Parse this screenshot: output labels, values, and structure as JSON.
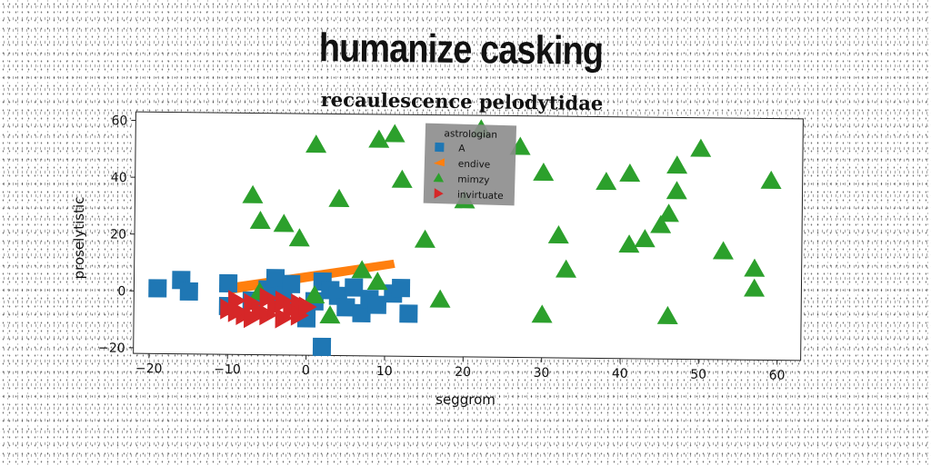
{
  "chart_data": {
    "type": "scatter",
    "title": "humanize casking",
    "subtitle": "recaulescence pelodytidae",
    "xlabel": "seggrom",
    "ylabel": "proselytistic",
    "xlim": [
      -22,
      63
    ],
    "ylim": [
      -22,
      63
    ],
    "xticks": [
      -20,
      -10,
      0,
      10,
      20,
      30,
      40,
      50,
      60
    ],
    "yticks": [
      -20,
      0,
      20,
      40,
      60
    ],
    "grid": false,
    "legend": {
      "title": "astrologian",
      "placement": "top-center"
    },
    "series": [
      {
        "name": "A",
        "marker": "square",
        "color": "#1f77b4",
        "points": [
          [
            -19,
            1
          ],
          [
            -16,
            4
          ],
          [
            -15,
            0
          ],
          [
            -10,
            3
          ],
          [
            -10,
            -5
          ],
          [
            -7,
            -3
          ],
          [
            -5,
            1
          ],
          [
            -4,
            5
          ],
          [
            -3,
            -1
          ],
          [
            -2,
            3
          ],
          [
            0,
            -9
          ],
          [
            1,
            -3
          ],
          [
            2,
            4
          ],
          [
            3,
            1
          ],
          [
            4,
            -1
          ],
          [
            5,
            -5
          ],
          [
            6,
            2
          ],
          [
            7,
            -7
          ],
          [
            8,
            -2
          ],
          [
            9,
            -4
          ],
          [
            11,
            0
          ],
          [
            12,
            2
          ],
          [
            13,
            -7
          ],
          [
            2,
            -19
          ]
        ]
      },
      {
        "name": "endive",
        "marker": "wedge",
        "color": "#ff7f0e",
        "points": [
          [
            -10,
            2
          ],
          [
            11,
            11
          ]
        ]
      },
      {
        "name": "mimzy",
        "marker": "triangle",
        "color": "#2ca02c",
        "points": [
          [
            1,
            52
          ],
          [
            9,
            54
          ],
          [
            11,
            56
          ],
          [
            12,
            40
          ],
          [
            22,
            58
          ],
          [
            27,
            52
          ],
          [
            30,
            43
          ],
          [
            41,
            43
          ],
          [
            38,
            40
          ],
          [
            47,
            46
          ],
          [
            47,
            37
          ],
          [
            50,
            52
          ],
          [
            59,
            41
          ],
          [
            -7,
            34
          ],
          [
            -6,
            25
          ],
          [
            -3,
            24
          ],
          [
            -1,
            19
          ],
          [
            4,
            33
          ],
          [
            15,
            19
          ],
          [
            20,
            33
          ],
          [
            32,
            21
          ],
          [
            33,
            9
          ],
          [
            41,
            18
          ],
          [
            43,
            20
          ],
          [
            45,
            25
          ],
          [
            46,
            29
          ],
          [
            53,
            16
          ],
          [
            57,
            10
          ],
          [
            57,
            3
          ],
          [
            -6,
            0
          ],
          [
            1,
            -1
          ],
          [
            3,
            -8
          ],
          [
            7,
            8
          ],
          [
            9,
            4
          ],
          [
            17,
            -2
          ],
          [
            30,
            -7
          ],
          [
            46,
            -7
          ]
        ]
      },
      {
        "name": "invirtuate",
        "marker": "triangle-right",
        "color": "#d62728",
        "points": [
          [
            -10,
            -6
          ],
          [
            -9,
            -3
          ],
          [
            -8,
            -8
          ],
          [
            -7,
            -4
          ],
          [
            -6,
            -7
          ],
          [
            -5,
            -2
          ],
          [
            -5,
            -8
          ],
          [
            -4,
            -5
          ],
          [
            -3,
            -9
          ],
          [
            -3,
            -3
          ],
          [
            -2,
            -6
          ],
          [
            -1,
            -4
          ],
          [
            -1,
            -8
          ],
          [
            0,
            -5
          ],
          [
            -9,
            -7
          ],
          [
            -7,
            -9
          ]
        ]
      }
    ]
  }
}
